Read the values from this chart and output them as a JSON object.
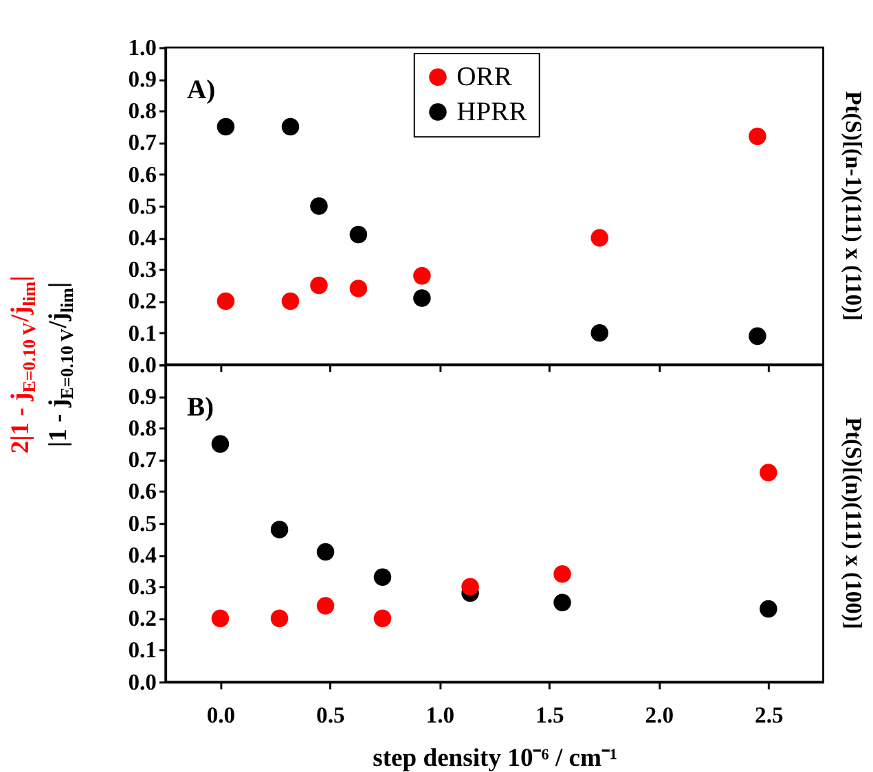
{
  "chart_data": [
    {
      "type": "scatter",
      "marker": "circle",
      "legend": "top",
      "tick_labels": "y",
      "y2label": "Pt(S)[(n-1)(111) x (110)]",
      "annotations": [
        "A)"
      ],
      "x": [
        0.025,
        0.32,
        0.45,
        0.63,
        0.92,
        1.73,
        2.45
      ],
      "series": [
        {
          "name": "ORR",
          "color": "#ff0000",
          "values": [
            0.2,
            0.2,
            0.25,
            0.24,
            0.28,
            0.4,
            0.72
          ]
        },
        {
          "name": "HPRR",
          "color": "#000000",
          "values": [
            0.75,
            0.75,
            0.5,
            0.41,
            0.21,
            0.1,
            0.09
          ]
        }
      ],
      "xlim": [
        -0.25,
        2.75
      ],
      "xticks": [
        {
          "value": 0,
          "label": null
        },
        {
          "value": 0.5,
          "label": null
        },
        {
          "value": 1,
          "label": null
        },
        {
          "value": 1.5,
          "label": null
        },
        {
          "value": 2,
          "label": null
        },
        {
          "value": 2.5,
          "label": null
        }
      ],
      "ylim": [
        0,
        1
      ],
      "yticks": [
        {
          "value": 0,
          "label": "0.0"
        },
        {
          "value": 0.1,
          "label": "0.1"
        },
        {
          "value": 0.2,
          "label": "0.2"
        },
        {
          "value": 0.3,
          "label": "0.3"
        },
        {
          "value": 0.4,
          "label": "0.4"
        },
        {
          "value": 0.5,
          "label": "0.5"
        },
        {
          "value": 0.6,
          "label": "0.6"
        },
        {
          "value": 0.7,
          "label": "0.7"
        },
        {
          "value": 0.8,
          "label": "0.8"
        },
        {
          "value": 0.9,
          "label": "0.9"
        },
        {
          "value": 1,
          "label": "1.0"
        }
      ]
    },
    {
      "type": "scatter",
      "marker": "circle",
      "xlabel": "step density 10⁻⁶ / cm⁻¹",
      "ylabel": "|1 - j$_{E=0.10 V}$/j$_{lim}$|",
      "y2label": "Pt(S)[(n)(111) x (100)]",
      "annotations": [
        "B)",
        "2|1 - j$_{E=0.10 V}$/j$_{lim}$|"
      ],
      "x": [
        0.0,
        0.27,
        0.48,
        0.74,
        1.14,
        1.56,
        2.5
      ],
      "series": [
        {
          "name": "ORR",
          "color": "#ff0000",
          "values": [
            0.2,
            0.2,
            0.24,
            0.2,
            0.3,
            0.34,
            0.66
          ]
        },
        {
          "name": "HPRR",
          "color": "#000000",
          "values": [
            0.75,
            0.48,
            0.41,
            0.33,
            0.28,
            0.25,
            0.23
          ]
        }
      ],
      "xlim": [
        -0.25,
        2.75
      ],
      "xticks": [
        {
          "value": 0,
          "label": "0.0"
        },
        {
          "value": 0.5,
          "label": "0.5"
        },
        {
          "value": 1,
          "label": "1.0"
        },
        {
          "value": 1.5,
          "label": "1.5"
        },
        {
          "value": 2,
          "label": "2.0"
        },
        {
          "value": 2.5,
          "label": "2.5"
        }
      ],
      "ylim": [
        0,
        1
      ],
      "yticks": [
        {
          "value": 0,
          "label": "0.0"
        },
        {
          "value": 0.1,
          "label": "0.1"
        },
        {
          "value": 0.2,
          "label": "0.2"
        },
        {
          "value": 0.3,
          "label": "0.3"
        },
        {
          "value": 0.4,
          "label": "0.4"
        },
        {
          "value": 0.5,
          "label": "0.5"
        },
        {
          "value": 0.6,
          "label": "0.6"
        },
        {
          "value": 0.7,
          "label": "0.7"
        },
        {
          "value": 0.8,
          "label": "0.8"
        },
        {
          "value": 0.9,
          "label": "0.9"
        },
        {
          "value": 1,
          "label": null
        }
      ]
    }
  ]
}
